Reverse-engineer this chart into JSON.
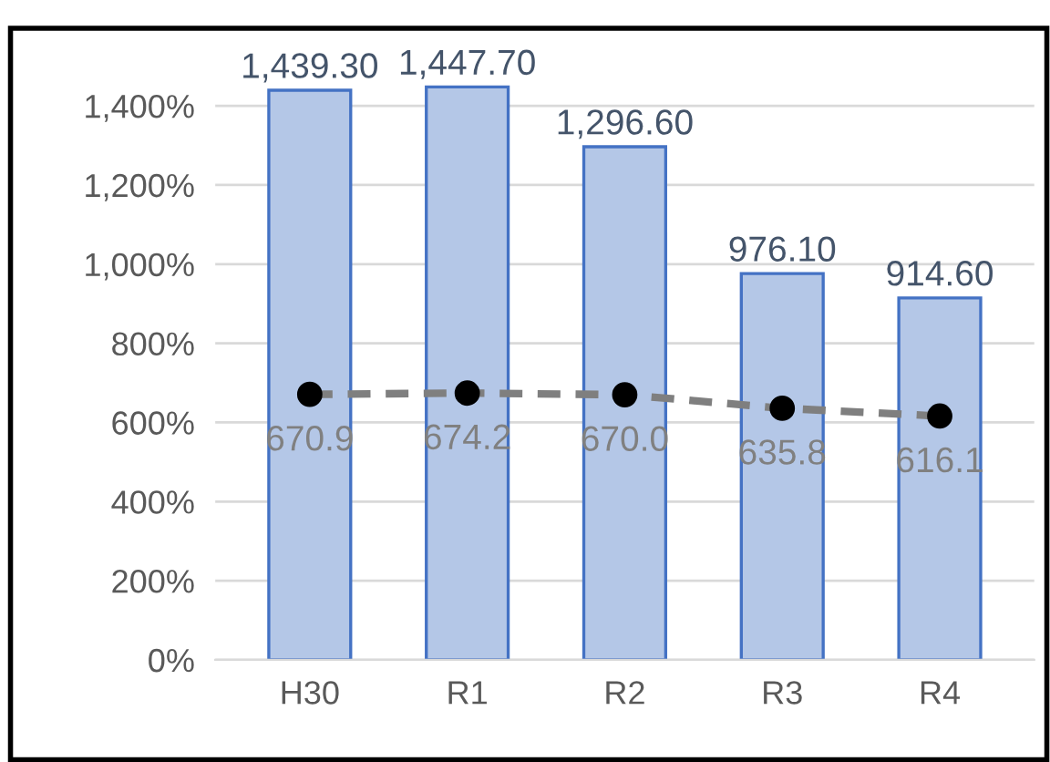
{
  "chart_data": {
    "type": "bar",
    "categories": [
      "H30",
      "R1",
      "R2",
      "R3",
      "R4"
    ],
    "series": [
      {
        "color": "#b4c7e7",
        "values": [
          1439.3,
          1447.7,
          1296.6,
          976.1,
          914.6
        ],
        "value_labels": [
          "1,439.30",
          "1,447.70",
          "1,296.60",
          "976.10",
          "914.60"
        ]
      },
      {
        "type": "line",
        "color": "#7f7f7f",
        "marker": "circle",
        "line_style": "dashed",
        "values": [
          670.9,
          674.2,
          670.0,
          635.8,
          616.1
        ],
        "value_labels": [
          "670.9",
          "674.2",
          "670.0",
          "635.8",
          "616.1"
        ]
      }
    ],
    "ylim": [
      0,
      1600
    ],
    "yticks": [
      {
        "value": 0,
        "label": "0%"
      },
      {
        "value": 200,
        "label": "200%"
      },
      {
        "value": 400,
        "label": "400%"
      },
      {
        "value": 600,
        "label": "600%"
      },
      {
        "value": 800,
        "label": "800%"
      },
      {
        "value": 1000,
        "label": "1,000%"
      },
      {
        "value": 1200,
        "label": "1,200%"
      },
      {
        "value": 1400,
        "label": "1,400%"
      }
    ],
    "grid": "y",
    "legend": false
  }
}
